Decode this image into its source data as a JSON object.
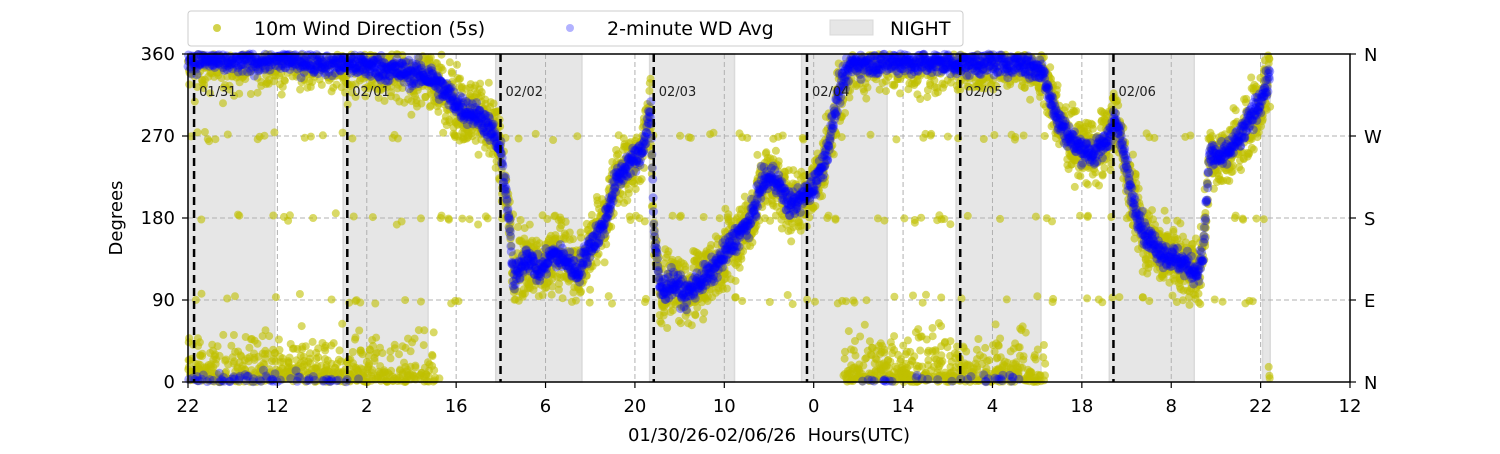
{
  "chart_data": {
    "type": "scatter",
    "xlabel": "01/30/26-02/06/26  Hours(UTC)",
    "ylabel": "Degrees",
    "x_units": "hours since 01/30 22:00 UTC",
    "xlim": [
      0,
      182
    ],
    "ylim": [
      0,
      360
    ],
    "grid": true,
    "legend_placement": "top-left, above plot",
    "x_ticks": [
      {
        "value": 0,
        "label": "22"
      },
      {
        "value": 14,
        "label": "12"
      },
      {
        "value": 28,
        "label": "2"
      },
      {
        "value": 42,
        "label": "16"
      },
      {
        "value": 56,
        "label": "6"
      },
      {
        "value": 70,
        "label": "20"
      },
      {
        "value": 84,
        "label": "10"
      },
      {
        "value": 98,
        "label": "0"
      },
      {
        "value": 112,
        "label": "14"
      },
      {
        "value": 126,
        "label": "4"
      },
      {
        "value": 140,
        "label": "18"
      },
      {
        "value": 154,
        "label": "8"
      },
      {
        "value": 168,
        "label": "22"
      },
      {
        "value": 182,
        "label": "12"
      }
    ],
    "y_ticks": [
      {
        "value": 0,
        "label": "0"
      },
      {
        "value": 90,
        "label": "90"
      },
      {
        "value": 180,
        "label": "180"
      },
      {
        "value": 270,
        "label": "270"
      },
      {
        "value": 360,
        "label": "360"
      }
    ],
    "y_ticks_right": [
      {
        "value": 0,
        "label": "N"
      },
      {
        "value": 90,
        "label": "E"
      },
      {
        "value": 180,
        "label": "S"
      },
      {
        "value": 270,
        "label": "W"
      },
      {
        "value": 360,
        "label": "N"
      }
    ],
    "day_markers": [
      {
        "hour": 0.95,
        "label": "01/31"
      },
      {
        "hour": 24.95,
        "label": "02/01"
      },
      {
        "hour": 48.95,
        "label": "02/02"
      },
      {
        "hour": 72.95,
        "label": "02/03"
      },
      {
        "hour": 96.95,
        "label": "02/04"
      },
      {
        "hour": 120.95,
        "label": "02/05"
      },
      {
        "hour": 144.95,
        "label": "02/06"
      }
    ],
    "night_spans": [
      [
        0,
        13.6
      ],
      [
        24.3,
        37.6
      ],
      [
        48.2,
        61.7
      ],
      [
        72.3,
        85.6
      ],
      [
        96.1,
        109.5
      ],
      [
        120.3,
        133.6
      ],
      [
        144.3,
        157.6
      ],
      [
        168.3,
        169.5
      ]
    ],
    "legend": [
      {
        "label": "10m Wind Direction (5s)",
        "color": "#bfbf00"
      },
      {
        "label": "2-minute WD Avg",
        "color": "#0000ff"
      },
      {
        "label": "NIGHT",
        "color": "#e6e6e6"
      }
    ],
    "series": [
      {
        "name": "2-minute WD Avg",
        "color": "#0000ff",
        "points": [
          [
            0,
            355
          ],
          [
            6,
            352
          ],
          [
            13,
            354
          ],
          [
            20,
            352
          ],
          [
            25,
            350
          ],
          [
            30,
            345
          ],
          [
            34,
            340
          ],
          [
            38,
            335
          ],
          [
            40,
            320
          ],
          [
            43,
            300
          ],
          [
            46,
            290
          ],
          [
            48,
            270
          ],
          [
            49,
            250
          ],
          [
            50,
            200
          ],
          [
            51,
            110
          ],
          [
            53,
            140
          ],
          [
            55,
            120
          ],
          [
            57,
            140
          ],
          [
            59,
            135
          ],
          [
            61,
            120
          ],
          [
            63,
            150
          ],
          [
            65,
            170
          ],
          [
            67,
            220
          ],
          [
            69,
            240
          ],
          [
            71,
            250
          ],
          [
            72.5,
            300
          ],
          [
            73,
            160
          ],
          [
            74,
            100
          ],
          [
            76,
            110
          ],
          [
            78,
            95
          ],
          [
            80,
            110
          ],
          [
            82,
            120
          ],
          [
            84,
            140
          ],
          [
            86,
            160
          ],
          [
            88,
            175
          ],
          [
            90,
            220
          ],
          [
            92,
            225
          ],
          [
            94,
            195
          ],
          [
            96,
            200
          ],
          [
            98,
            215
          ],
          [
            100,
            250
          ],
          [
            102,
            320
          ],
          [
            104,
            350
          ],
          [
            110,
            352
          ],
          [
            120,
            350
          ],
          [
            130,
            352
          ],
          [
            134,
            340
          ],
          [
            136,
            290
          ],
          [
            139,
            260
          ],
          [
            142,
            250
          ],
          [
            144,
            265
          ],
          [
            145,
            290
          ],
          [
            146,
            270
          ],
          [
            148,
            200
          ],
          [
            150,
            160
          ],
          [
            153,
            140
          ],
          [
            156,
            130
          ],
          [
            158,
            120
          ],
          [
            159,
            140
          ],
          [
            160,
            250
          ],
          [
            162,
            245
          ],
          [
            165,
            270
          ],
          [
            168,
            310
          ],
          [
            169.5,
            335
          ]
        ]
      },
      {
        "name": "10m Wind Direction (5s)",
        "color": "#bfbf00",
        "spread_deg": 18,
        "follows": "2-minute WD Avg"
      }
    ]
  }
}
